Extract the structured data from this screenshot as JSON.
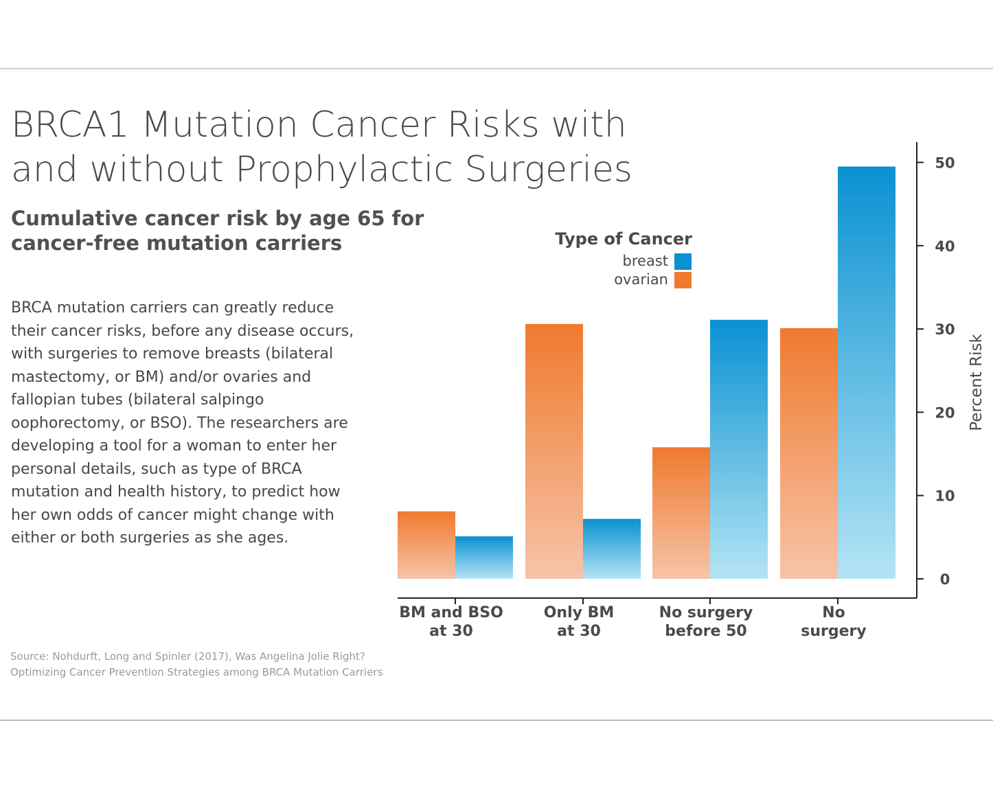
{
  "title_lines": [
    "BRCA1 Mutation Cancer Risks with",
    "and without Prophylactic Surgeries"
  ],
  "subtitle_lines": [
    "Cumulative cancer risk by age 65 for",
    "cancer-free mutation carriers"
  ],
  "body_lines": [
    "BRCA mutation carriers can greatly reduce",
    "their cancer risks, before any disease occurs,",
    "with surgeries to remove breasts (bilateral",
    "mastectomy, or BM) and/or ovaries and",
    "fallopian tubes (bilateral salpingo",
    "oophorectomy, or BSO). The researchers are",
    "developing a tool for a woman to enter her",
    "personal details, such as type of BRCA",
    "mutation and health history, to predict how",
    "her own odds of cancer might change with",
    "either or both surgeries as she ages."
  ],
  "source_lines": [
    "Source: Nohdurft, Long and Spinler (2017), Was Angelina Jolie Right?",
    "Optimizing Cancer Prevention Strategies among BRCA Mutation Carriers"
  ],
  "colors": {
    "breast_top": "#0a91d2",
    "breast_bottom": "#b4e4f4",
    "ovarian_top": "#f07a2e",
    "ovarian_bottom": "#f6c4a8",
    "axis": "#222222",
    "text": "#444444"
  },
  "chart_data": {
    "type": "bar",
    "title": "",
    "categories": [
      [
        "BM and BSO",
        "at 30"
      ],
      [
        "Only BM",
        "at 30"
      ],
      [
        "No surgery",
        "before 50"
      ],
      [
        "No",
        "surgery"
      ]
    ],
    "series": [
      {
        "name": "ovarian",
        "values": [
          8.1,
          30.6,
          15.8,
          30.1
        ]
      },
      {
        "name": "breast",
        "values": [
          5.1,
          7.2,
          31.1,
          49.5
        ]
      }
    ],
    "legend": {
      "title": "Type of Cancer",
      "entries": [
        "breast",
        "ovarian"
      ],
      "position": "top-right"
    },
    "ylabel": "Percent Risk",
    "ylim": [
      0,
      52
    ],
    "yticks": [
      0,
      10,
      20,
      30,
      40,
      50
    ],
    "grid": false
  }
}
